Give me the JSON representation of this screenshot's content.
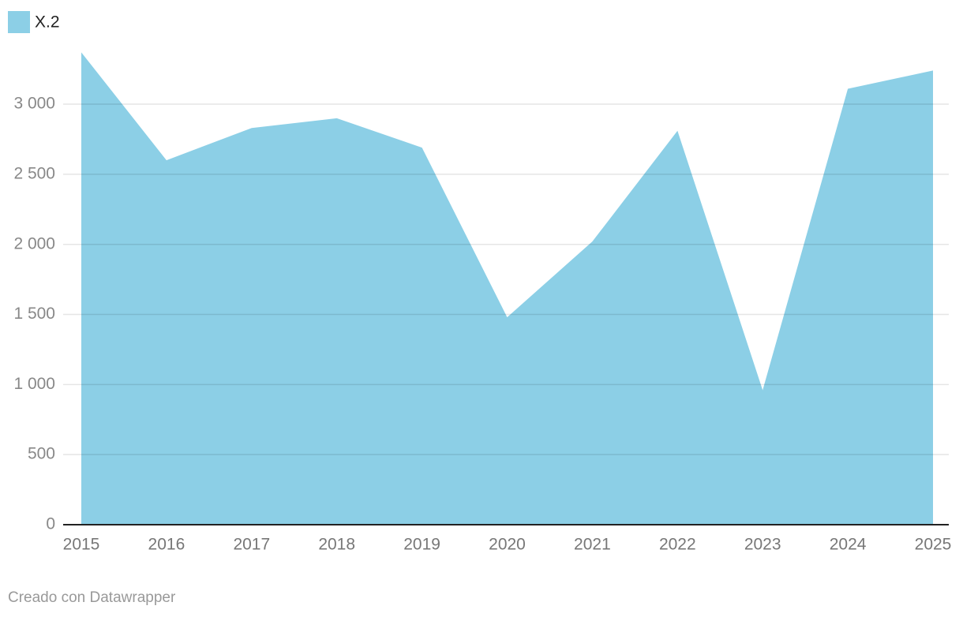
{
  "chart_data": {
    "type": "area",
    "x": [
      2015,
      2016,
      2017,
      2018,
      2019,
      2020,
      2021,
      2022,
      2023,
      2024,
      2025
    ],
    "xlim": [
      2015,
      2025
    ],
    "series": [
      {
        "name": "X.2",
        "color": "#8ccfe6",
        "values": [
          3370,
          2600,
          2830,
          2900,
          2690,
          1480,
          2020,
          2810,
          960,
          3110,
          3240
        ]
      }
    ],
    "ylim": [
      0,
      3400
    ],
    "yticks": [
      0,
      500,
      {
        "value": 1000,
        "label": "1 000"
      },
      {
        "value": 1500,
        "label": "1 500"
      },
      {
        "value": 2000,
        "label": "2 000"
      },
      {
        "value": 2500,
        "label": "2 500"
      },
      {
        "value": 3000,
        "label": "3 000"
      }
    ],
    "grid": true,
    "credit": "Creado con Datawrapper"
  }
}
